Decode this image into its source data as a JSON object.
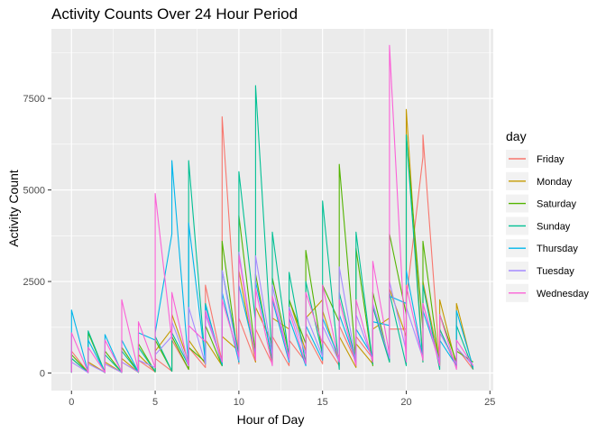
{
  "chart_data": {
    "type": "line",
    "title": "Activity Counts Over 24 Hour Period",
    "xlabel": "Hour of Day",
    "ylabel": "Activity Count",
    "xlim": [
      -1.2,
      25.2
    ],
    "ylim": [
      -480,
      9400
    ],
    "x_ticks": [
      0,
      5,
      10,
      15,
      20,
      25
    ],
    "y_ticks": [
      0,
      2500,
      5000,
      7500
    ],
    "y_tick_labels": [
      "0",
      "2500",
      "5000",
      "7500"
    ],
    "grid": true,
    "background": "#ebebeb",
    "legend": {
      "title": "day",
      "position": "right"
    },
    "series": [
      {
        "name": "Friday",
        "color": "#F8766D",
        "x": [
          0,
          0,
          1,
          1,
          2,
          2,
          3,
          3,
          4,
          4,
          5,
          5,
          6,
          6,
          7,
          7,
          8,
          8,
          9,
          9,
          10,
          10,
          11,
          11,
          12,
          12,
          13,
          13,
          14,
          14,
          15,
          15,
          16,
          16,
          17,
          17,
          18,
          18,
          19,
          19,
          20,
          20,
          21,
          21,
          22,
          22,
          23,
          23,
          24
        ],
        "y": [
          20,
          600,
          10,
          300,
          20,
          250,
          15,
          300,
          20,
          350,
          30,
          400,
          50,
          900,
          100,
          700,
          150,
          2400,
          300,
          7000,
          250,
          1500,
          300,
          1200,
          250,
          1000,
          200,
          900,
          300,
          1100,
          250,
          900,
          200,
          1300,
          300,
          1000,
          400,
          1800,
          350,
          1200,
          1200,
          2000,
          5900,
          6500,
          300,
          1200,
          150,
          700,
          100
        ]
      },
      {
        "name": "Monday",
        "color": "#C49A00",
        "x": [
          0,
          0,
          1,
          1,
          2,
          2,
          3,
          3,
          4,
          4,
          5,
          5,
          6,
          6,
          7,
          7,
          8,
          8,
          9,
          9,
          10,
          10,
          11,
          11,
          12,
          12,
          13,
          13,
          14,
          14,
          15,
          15,
          16,
          16,
          17,
          17,
          18,
          18,
          19,
          19,
          20,
          20,
          21,
          21,
          22,
          22,
          23,
          23,
          24
        ],
        "y": [
          10,
          400,
          10,
          300,
          10,
          300,
          15,
          400,
          20,
          500,
          50,
          600,
          1200,
          1600,
          300,
          900,
          250,
          900,
          200,
          1000,
          600,
          2800,
          300,
          1800,
          800,
          1500,
          1200,
          2000,
          600,
          1500,
          2000,
          1700,
          300,
          1000,
          150,
          800,
          250,
          1200,
          1500,
          2300,
          1000,
          7200,
          300,
          2500,
          250,
          2000,
          200,
          1900,
          100
        ]
      },
      {
        "name": "Saturday",
        "color": "#53B400",
        "x": [
          0,
          0,
          1,
          1,
          2,
          2,
          3,
          3,
          4,
          4,
          5,
          5,
          6,
          6,
          7,
          7,
          8,
          8,
          9,
          9,
          10,
          10,
          11,
          11,
          12,
          12,
          13,
          13,
          14,
          14,
          15,
          15,
          16,
          16,
          17,
          17,
          18,
          18,
          19,
          19,
          20,
          20,
          21,
          21,
          22,
          22,
          23,
          23,
          24
        ],
        "y": [
          15,
          500,
          20,
          1100,
          10,
          600,
          15,
          700,
          20,
          800,
          30,
          900,
          50,
          1000,
          100,
          700,
          300,
          1300,
          200,
          3600,
          300,
          4300,
          500,
          2700,
          300,
          2600,
          500,
          2000,
          800,
          3350,
          500,
          2400,
          1400,
          5700,
          300,
          3400,
          200,
          2200,
          300,
          3800,
          1600,
          6500,
          1200,
          3600,
          200,
          1600,
          300,
          600,
          300
        ]
      },
      {
        "name": "Sunday",
        "color": "#00C094",
        "x": [
          0,
          0,
          1,
          1,
          2,
          2,
          3,
          3,
          4,
          4,
          5,
          5,
          6,
          6,
          7,
          7,
          8,
          8,
          9,
          9,
          10,
          10,
          11,
          11,
          12,
          12,
          13,
          13,
          14,
          14,
          15,
          15,
          16,
          16,
          17,
          17,
          18,
          18,
          19,
          19,
          20,
          20,
          21,
          21,
          22,
          22,
          23,
          23,
          24
        ],
        "y": [
          10,
          400,
          15,
          1150,
          10,
          500,
          20,
          600,
          20,
          700,
          40,
          1000,
          50,
          1100,
          200,
          5800,
          250,
          1900,
          200,
          2800,
          500,
          5500,
          1400,
          7850,
          300,
          3850,
          400,
          2750,
          250,
          2500,
          500,
          4700,
          100,
          2200,
          300,
          3850,
          250,
          1800,
          300,
          2200,
          200,
          6500,
          300,
          2400,
          100,
          1200,
          200,
          1300,
          100
        ]
      },
      {
        "name": "Thursday",
        "color": "#00B6EB",
        "x": [
          0,
          0,
          1,
          1,
          2,
          2,
          3,
          3,
          4,
          4,
          5,
          5,
          6,
          6,
          7,
          7,
          8,
          8,
          9,
          9,
          10,
          10,
          11,
          11,
          12,
          12,
          13,
          13,
          14,
          14,
          15,
          15,
          16,
          16,
          17,
          17,
          18,
          18,
          19,
          19,
          20,
          20,
          21,
          21,
          22,
          22,
          23,
          23,
          24
        ],
        "y": [
          20,
          1720,
          10,
          900,
          15,
          1050,
          20,
          900,
          30,
          1100,
          900,
          1100,
          3800,
          5800,
          200,
          4100,
          300,
          1850,
          250,
          2200,
          300,
          2400,
          500,
          2500,
          400,
          2000,
          300,
          1500,
          200,
          1300,
          350,
          1500,
          400,
          1600,
          300,
          1200,
          450,
          1400,
          1300,
          2100,
          1900,
          2800,
          400,
          1700,
          300,
          900,
          200,
          1700,
          150
        ]
      },
      {
        "name": "Tuesday",
        "color": "#A58AFF",
        "x": [
          0,
          0,
          1,
          1,
          2,
          2,
          3,
          3,
          4,
          4,
          5,
          5,
          6,
          6,
          7,
          7,
          8,
          8,
          9,
          9,
          10,
          10,
          11,
          11,
          12,
          12,
          13,
          13,
          14,
          14,
          15,
          15,
          16,
          16,
          17,
          17,
          18,
          18,
          19,
          19,
          20,
          20,
          21,
          21,
          22,
          22,
          23,
          23,
          24
        ],
        "y": [
          20,
          300,
          10,
          250,
          15,
          250,
          20,
          300,
          30,
          350,
          150,
          500,
          1000,
          1400,
          200,
          1800,
          250,
          1600,
          300,
          2800,
          350,
          3300,
          400,
          3200,
          450,
          2400,
          350,
          1800,
          500,
          1600,
          450,
          1300,
          300,
          2900,
          300,
          1600,
          350,
          1900,
          400,
          2500,
          600,
          1800,
          400,
          1900,
          300,
          1100,
          250,
          700,
          200
        ]
      },
      {
        "name": "Wednesday",
        "color": "#FB61D7",
        "x": [
          0,
          0,
          1,
          1,
          2,
          2,
          3,
          3,
          4,
          4,
          5,
          5,
          6,
          6,
          7,
          7,
          8,
          8,
          9,
          9,
          10,
          10,
          11,
          11,
          12,
          12,
          13,
          13,
          14,
          14,
          15,
          15,
          16,
          16,
          17,
          17,
          18,
          18,
          19,
          19,
          20,
          20,
          21,
          21,
          22,
          22,
          23,
          23,
          24
        ],
        "y": [
          20,
          1100,
          15,
          700,
          20,
          900,
          30,
          2000,
          50,
          1400,
          150,
          4900,
          900,
          2200,
          200,
          1300,
          850,
          1700,
          300,
          2000,
          450,
          3200,
          350,
          2300,
          200,
          2100,
          400,
          1700,
          250,
          2200,
          800,
          2400,
          300,
          2000,
          200,
          2000,
          300,
          3050,
          500,
          8950,
          300,
          2400,
          350,
          1900,
          200,
          1600,
          100,
          900,
          200
        ]
      }
    ]
  }
}
